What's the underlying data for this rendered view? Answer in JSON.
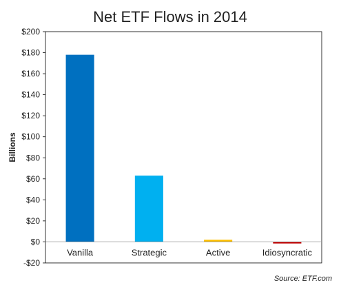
{
  "chart_data": {
    "type": "bar",
    "title": "Net ETF Flows in 2014",
    "ylabel": "Billions",
    "xlabel": "",
    "categories": [
      "Vanilla",
      "Strategic",
      "Active",
      "Idiosyncratic"
    ],
    "values": [
      178,
      63,
      2,
      -1.5
    ],
    "colors": [
      "#0070c0",
      "#00b0f0",
      "#ffc000",
      "#c00000"
    ],
    "ylim": [
      -20,
      200
    ],
    "yticks": [
      -20,
      0,
      20,
      40,
      60,
      80,
      100,
      120,
      140,
      160,
      180,
      200
    ],
    "ytick_labels": [
      "-$20",
      "$0",
      "$20",
      "$40",
      "$60",
      "$80",
      "$100",
      "$120",
      "$140",
      "$160",
      "$180",
      "$200"
    ],
    "grid": false,
    "source": "Source:  ETF.com"
  }
}
